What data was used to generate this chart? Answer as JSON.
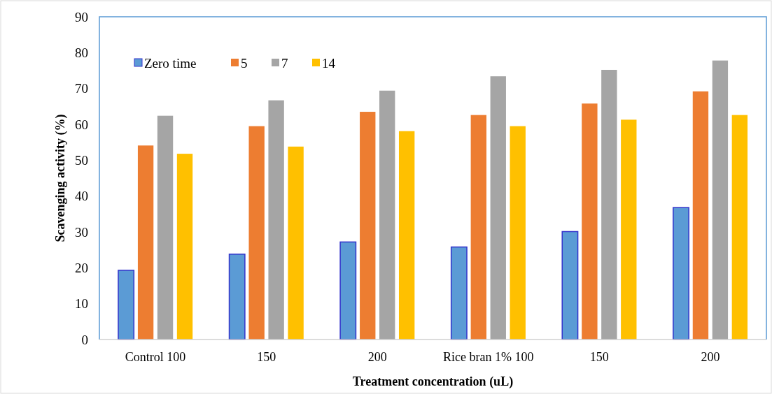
{
  "chart_data": {
    "type": "bar",
    "xlabel": "Treatment concentration (uL)",
    "ylabel": "Scavenging activity (%)",
    "categories": [
      "Control 100",
      "150",
      "200",
      "Rice bran 1% 100",
      "150",
      "200"
    ],
    "series": [
      {
        "name": "Zero time",
        "color": "#5b9bd5",
        "values": [
          19.3,
          23.8,
          27.2,
          25.8,
          30.1,
          36.8
        ]
      },
      {
        "name": "5",
        "color": "#ed7d31",
        "values": [
          54.1,
          59.5,
          63.5,
          62.6,
          65.8,
          69.2
        ]
      },
      {
        "name": "7",
        "color": "#a5a5a5",
        "values": [
          62.4,
          66.7,
          69.4,
          73.4,
          75.2,
          77.8
        ]
      },
      {
        "name": "14",
        "color": "#ffc000",
        "values": [
          51.8,
          53.8,
          58.1,
          59.5,
          61.3,
          62.6
        ]
      }
    ],
    "ylim": [
      0,
      90
    ],
    "yticks": [
      0,
      10,
      20,
      30,
      40,
      50,
      60,
      70,
      80,
      90
    ],
    "grid": false,
    "legend": "top left"
  }
}
